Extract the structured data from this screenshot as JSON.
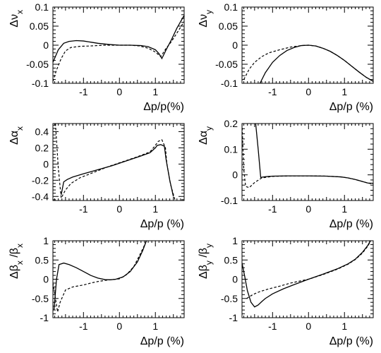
{
  "chart_data": [
    {
      "type": "line",
      "title": "",
      "ylabel": "Δν_x",
      "xlabel": "Δp/p(%)",
      "xlim": [
        -1.85,
        1.8
      ],
      "ylim": [
        -0.1,
        0.1
      ],
      "xticks": [
        -1,
        0,
        1
      ],
      "yticks": [
        -0.1,
        -0.05,
        0,
        0.05,
        0.1
      ],
      "ytick_labels": [
        "-0.1",
        "-0.05",
        "0",
        "0.05",
        "0.1"
      ],
      "series": [
        {
          "style": "solid",
          "points": [
            [
              -1.85,
              -0.045
            ],
            [
              -1.7,
              -0.012
            ],
            [
              -1.55,
              0.005
            ],
            [
              -1.4,
              0.01
            ],
            [
              -1.2,
              0.012
            ],
            [
              -1.0,
              0.011
            ],
            [
              -0.8,
              0.008
            ],
            [
              -0.6,
              0.005
            ],
            [
              -0.3,
              0.002
            ],
            [
              0,
              0.0
            ],
            [
              0.3,
              0.0
            ],
            [
              0.6,
              -0.001
            ],
            [
              0.8,
              -0.004
            ],
            [
              1.0,
              -0.012
            ],
            [
              1.1,
              -0.022
            ],
            [
              1.18,
              -0.035
            ],
            [
              1.3,
              -0.012
            ],
            [
              1.45,
              0.015
            ],
            [
              1.6,
              0.045
            ],
            [
              1.8,
              0.078
            ]
          ]
        },
        {
          "style": "dashed",
          "points": [
            [
              -1.85,
              -0.095
            ],
            [
              -1.75,
              -0.065
            ],
            [
              -1.62,
              -0.035
            ],
            [
              -1.5,
              -0.015
            ],
            [
              -1.35,
              -0.006
            ],
            [
              -1.1,
              -0.003
            ],
            [
              -0.8,
              -0.002
            ],
            [
              -0.4,
              0.0
            ],
            [
              0,
              0.0
            ],
            [
              0.3,
              0.0
            ],
            [
              0.55,
              -0.002
            ],
            [
              0.8,
              -0.008
            ],
            [
              1.0,
              -0.018
            ],
            [
              1.15,
              -0.03
            ],
            [
              1.3,
              -0.008
            ],
            [
              1.45,
              0.01
            ],
            [
              1.6,
              0.032
            ],
            [
              1.8,
              0.062
            ]
          ]
        }
      ]
    },
    {
      "type": "line",
      "title": "",
      "ylabel": "Δν_y",
      "xlabel": "Δp/p (%)",
      "xlim": [
        -1.85,
        1.8
      ],
      "ylim": [
        -0.1,
        0.1
      ],
      "xticks": [
        -1,
        0,
        1
      ],
      "yticks": [
        -0.1,
        -0.05,
        0,
        0.05,
        0.1
      ],
      "ytick_labels": [
        "-0.1",
        "-0.05",
        "0",
        "0.05",
        "0.1"
      ],
      "series": [
        {
          "style": "solid",
          "points": [
            [
              -1.35,
              -0.1
            ],
            [
              -1.2,
              -0.072
            ],
            [
              -1.0,
              -0.045
            ],
            [
              -0.8,
              -0.027
            ],
            [
              -0.6,
              -0.014
            ],
            [
              -0.4,
              -0.006
            ],
            [
              -0.2,
              -0.001
            ],
            [
              0,
              0.0
            ],
            [
              0.2,
              -0.002
            ],
            [
              0.4,
              -0.008
            ],
            [
              0.6,
              -0.016
            ],
            [
              0.8,
              -0.027
            ],
            [
              1.0,
              -0.04
            ],
            [
              1.2,
              -0.055
            ],
            [
              1.4,
              -0.07
            ],
            [
              1.6,
              -0.084
            ],
            [
              1.8,
              -0.095
            ]
          ]
        },
        {
          "style": "dashed",
          "points": [
            [
              -1.8,
              -0.09
            ],
            [
              -1.65,
              -0.063
            ],
            [
              -1.5,
              -0.045
            ],
            [
              -1.3,
              -0.03
            ],
            [
              -1.1,
              -0.02
            ],
            [
              -0.8,
              -0.012
            ],
            [
              -0.5,
              -0.005
            ],
            [
              -0.2,
              -0.001
            ],
            [
              0,
              0.0
            ],
            [
              0.2,
              -0.002
            ],
            [
              0.4,
              -0.008
            ],
            [
              0.6,
              -0.016
            ],
            [
              0.8,
              -0.027
            ],
            [
              1.0,
              -0.04
            ],
            [
              1.2,
              -0.055
            ],
            [
              1.4,
              -0.07
            ],
            [
              1.6,
              -0.084
            ],
            [
              1.8,
              -0.095
            ]
          ]
        }
      ]
    },
    {
      "type": "line",
      "title": "",
      "ylabel": "Δα_x",
      "xlabel": "Δp/p (%)",
      "xlim": [
        -1.85,
        1.8
      ],
      "ylim": [
        -0.45,
        0.5
      ],
      "xticks": [
        -1,
        0,
        1
      ],
      "yticks": [
        -0.4,
        -0.2,
        0,
        0.2,
        0.4
      ],
      "ytick_labels": [
        "-0.4",
        "-0.2",
        "0",
        "0.2",
        "0.4"
      ],
      "series": [
        {
          "style": "solid",
          "points": [
            [
              -1.62,
              -0.38
            ],
            [
              -1.55,
              -0.22
            ],
            [
              -1.45,
              -0.19
            ],
            [
              -1.3,
              -0.16
            ],
            [
              -1.0,
              -0.12
            ],
            [
              -0.6,
              -0.07
            ],
            [
              -0.2,
              -0.02
            ],
            [
              0.2,
              0.04
            ],
            [
              0.6,
              0.1
            ],
            [
              0.85,
              0.14
            ],
            [
              1.0,
              0.2
            ],
            [
              1.05,
              0.23
            ],
            [
              1.15,
              0.24
            ],
            [
              1.25,
              0.22
            ],
            [
              1.3,
              0.05
            ],
            [
              1.4,
              -0.2
            ],
            [
              1.5,
              -0.4
            ]
          ]
        },
        {
          "style": "dashed",
          "points": [
            [
              -1.78,
              0.5
            ],
            [
              -1.7,
              -0.05
            ],
            [
              -1.62,
              -0.42
            ],
            [
              -1.5,
              -0.32
            ],
            [
              -1.35,
              -0.24
            ],
            [
              -1.1,
              -0.17
            ],
            [
              -0.7,
              -0.1
            ],
            [
              -0.3,
              -0.03
            ],
            [
              0.1,
              0.03
            ],
            [
              0.5,
              0.09
            ],
            [
              0.85,
              0.15
            ],
            [
              0.98,
              0.22
            ],
            [
              1.08,
              0.28
            ],
            [
              1.18,
              0.3
            ],
            [
              1.28,
              0.2
            ],
            [
              1.32,
              0.0
            ],
            [
              1.42,
              -0.25
            ],
            [
              1.55,
              -0.45
            ]
          ]
        }
      ]
    },
    {
      "type": "line",
      "title": "",
      "ylabel": "Δα_y",
      "xlabel": "Δp/p (%)",
      "xlim": [
        -1.85,
        1.8
      ],
      "ylim": [
        -0.1,
        0.2
      ],
      "xticks": [
        -1,
        0,
        1
      ],
      "yticks": [
        -0.1,
        0,
        0.1,
        0.2
      ],
      "ytick_labels": [
        "-0.1",
        "0",
        "0.1",
        "0.2"
      ],
      "series": [
        {
          "style": "solid",
          "points": [
            [
              -1.47,
              0.2
            ],
            [
              -1.4,
              0.1
            ],
            [
              -1.33,
              -0.01
            ],
            [
              -1.2,
              -0.007
            ],
            [
              -1.0,
              -0.005
            ],
            [
              -0.6,
              -0.004
            ],
            [
              0,
              -0.004
            ],
            [
              0.5,
              -0.005
            ],
            [
              0.9,
              -0.008
            ],
            [
              1.1,
              -0.012
            ],
            [
              1.3,
              -0.018
            ],
            [
              1.5,
              -0.026
            ],
            [
              1.65,
              -0.032
            ],
            [
              1.8,
              -0.033
            ]
          ]
        },
        {
          "style": "dashed",
          "points": [
            [
              -1.85,
              0.2
            ],
            [
              -1.8,
              0.02
            ],
            [
              -1.75,
              -0.045
            ],
            [
              -1.65,
              -0.05
            ],
            [
              -1.5,
              -0.03
            ],
            [
              -1.3,
              -0.012
            ],
            [
              -1.0,
              -0.006
            ],
            [
              -0.5,
              -0.004
            ],
            [
              0,
              -0.004
            ],
            [
              0.5,
              -0.005
            ],
            [
              0.9,
              -0.008
            ],
            [
              1.1,
              -0.012
            ],
            [
              1.3,
              -0.018
            ],
            [
              1.5,
              -0.026
            ],
            [
              1.65,
              -0.032
            ],
            [
              1.8,
              -0.036
            ]
          ]
        }
      ]
    },
    {
      "type": "line",
      "title": "",
      "ylabel": "Δβ_x /β_x",
      "xlabel": "Δp/p (%)",
      "xlim": [
        -1.85,
        1.8
      ],
      "ylim": [
        -1,
        1
      ],
      "xticks": [
        -1,
        0,
        1
      ],
      "yticks": [
        -1,
        -0.5,
        0,
        0.5,
        1
      ],
      "ytick_labels": [
        "-1",
        "-0.5",
        "0",
        "0.5",
        "1"
      ],
      "series": [
        {
          "style": "solid",
          "points": [
            [
              -1.82,
              -0.8
            ],
            [
              -1.75,
              0.0
            ],
            [
              -1.68,
              0.38
            ],
            [
              -1.55,
              0.42
            ],
            [
              -1.4,
              0.38
            ],
            [
              -1.2,
              0.3
            ],
            [
              -1.0,
              0.2
            ],
            [
              -0.8,
              0.1
            ],
            [
              -0.6,
              0.03
            ],
            [
              -0.4,
              -0.01
            ],
            [
              -0.25,
              -0.015
            ],
            [
              -0.1,
              0.0
            ],
            [
              0.1,
              0.06
            ],
            [
              0.3,
              0.2
            ],
            [
              0.5,
              0.45
            ],
            [
              0.65,
              0.75
            ],
            [
              0.75,
              1.0
            ]
          ]
        },
        {
          "style": "dashed",
          "points": [
            [
              -1.85,
              -0.1
            ],
            [
              -1.78,
              -0.5
            ],
            [
              -1.72,
              -0.85
            ],
            [
              -1.65,
              -0.6
            ],
            [
              -1.5,
              -0.28
            ],
            [
              -1.3,
              -0.2
            ],
            [
              -1.0,
              -0.15
            ],
            [
              -0.8,
              -0.1
            ],
            [
              -0.6,
              -0.06
            ],
            [
              -0.4,
              -0.03
            ],
            [
              -0.2,
              -0.01
            ],
            [
              0.0,
              0.01
            ],
            [
              0.2,
              0.12
            ],
            [
              0.4,
              0.33
            ],
            [
              0.55,
              0.6
            ],
            [
              0.68,
              0.85
            ],
            [
              0.75,
              1.0
            ]
          ]
        }
      ]
    },
    {
      "type": "line",
      "title": "",
      "ylabel": "Δβ_y /β_y",
      "xlabel": "Δp/p (%)",
      "xlim": [
        -1.85,
        1.8
      ],
      "ylim": [
        -1,
        1
      ],
      "xticks": [
        -1,
        0,
        1
      ],
      "yticks": [
        -1,
        -0.5,
        0,
        0.5,
        1
      ],
      "ytick_labels": [
        "-1",
        "-0.5",
        "0",
        "0.5",
        "1"
      ],
      "series": [
        {
          "style": "solid",
          "points": [
            [
              -1.85,
              0.42
            ],
            [
              -1.78,
              0.1
            ],
            [
              -1.7,
              -0.3
            ],
            [
              -1.6,
              -0.6
            ],
            [
              -1.5,
              -0.72
            ],
            [
              -1.4,
              -0.67
            ],
            [
              -1.3,
              -0.58
            ],
            [
              -1.2,
              -0.5
            ],
            [
              -1.0,
              -0.38
            ],
            [
              -0.7,
              -0.25
            ],
            [
              -0.4,
              -0.14
            ],
            [
              0,
              0.0
            ],
            [
              0.4,
              0.13
            ],
            [
              0.8,
              0.27
            ],
            [
              1.1,
              0.4
            ],
            [
              1.3,
              0.52
            ],
            [
              1.5,
              0.7
            ],
            [
              1.65,
              0.88
            ],
            [
              1.72,
              1.0
            ]
          ]
        },
        {
          "style": "dashed",
          "points": [
            [
              -1.72,
              -0.5
            ],
            [
              -1.55,
              -0.4
            ],
            [
              -1.35,
              -0.32
            ],
            [
              -1.1,
              -0.25
            ],
            [
              -0.8,
              -0.18
            ],
            [
              -0.5,
              -0.1
            ],
            [
              0,
              0.0
            ],
            [
              0.4,
              0.12
            ],
            [
              0.8,
              0.26
            ],
            [
              1.1,
              0.39
            ],
            [
              1.3,
              0.51
            ],
            [
              1.5,
              0.68
            ],
            [
              1.65,
              0.86
            ],
            [
              1.73,
              1.0
            ]
          ]
        }
      ]
    }
  ]
}
